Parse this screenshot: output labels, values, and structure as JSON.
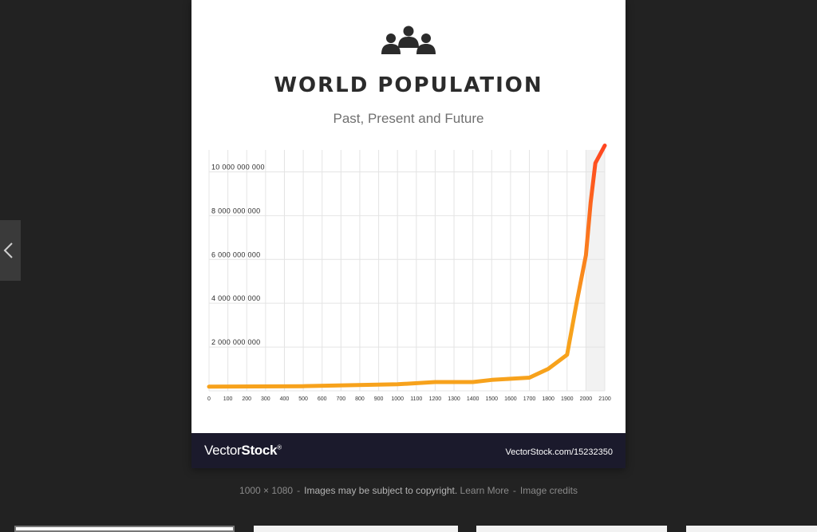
{
  "viewer": {
    "prev_icon": "chevron-left-icon",
    "caption": {
      "dimensions": "1000 × 1080",
      "separator": "-",
      "copyright": "Images may be subject to copyright.",
      "learn_more": "Learn More",
      "credits": "Image credits"
    }
  },
  "image": {
    "icon": "people-group-icon",
    "title": "WORLD POPULATION",
    "subtitle": "Past, Present and Future",
    "footer": {
      "brand_light": "Vector",
      "brand_bold": "Stock",
      "brand_mark": "®",
      "url": "VectorStock.com/15232350"
    }
  },
  "chart_data": {
    "type": "line",
    "title": "WORLD POPULATION",
    "subtitle": "Past, Present and Future",
    "xlabel": "",
    "ylabel": "",
    "x_ticks": [
      "0",
      "100",
      "200",
      "300",
      "400",
      "500",
      "600",
      "700",
      "800",
      "900",
      "1000",
      "1100",
      "1200",
      "1300",
      "1400",
      "1500",
      "1600",
      "1700",
      "1800",
      "1900",
      "2000",
      "2100"
    ],
    "y_ticks": [
      "2 000 000 000",
      "4 000 000 000",
      "6 000 000 000",
      "8 000 000 000",
      "10 000 000 000"
    ],
    "xlim": [
      0,
      2100
    ],
    "ylim": [
      0,
      11000000000
    ],
    "grid": true,
    "shaded_region": [
      2000,
      2100
    ],
    "colors": {
      "start": "#f7a21c",
      "end": "#ff4520"
    },
    "series": [
      {
        "x": [
          0,
          500,
          1000,
          1200,
          1400,
          1500,
          1600,
          1700,
          1800,
          1900,
          1950,
          2000,
          2025,
          2050,
          2075,
          2100
        ],
        "values": [
          190000000,
          210000000,
          300000000,
          400000000,
          400000000,
          500000000,
          550000000,
          600000000,
          1000000000,
          1650000000,
          4000000000,
          6200000000,
          8600000000,
          10400000000,
          10800000000,
          11200000000
        ]
      }
    ]
  }
}
